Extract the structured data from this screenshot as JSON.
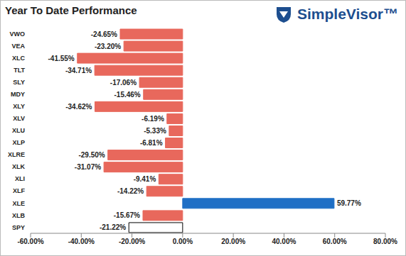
{
  "chart_data": {
    "type": "bar",
    "title": "Year To Date Performance",
    "brand": "SimpleVisor™",
    "orientation": "horizontal",
    "categories": [
      "VWO",
      "VEA",
      "XLC",
      "TLT",
      "SLY",
      "MDY",
      "XLY",
      "XLV",
      "XLU",
      "XLP",
      "XLRE",
      "XLK",
      "XLI",
      "XLF",
      "XLE",
      "XLB",
      "SPY"
    ],
    "values": [
      -24.65,
      -23.2,
      -41.55,
      -34.71,
      -17.06,
      -15.46,
      -34.62,
      -6.19,
      -5.33,
      -6.81,
      -29.5,
      -31.07,
      -9.41,
      -14.22,
      59.77,
      -15.67,
      -21.22
    ],
    "value_labels": [
      "-24.65%",
      "-23.20%",
      "-41.55%",
      "-34.71%",
      "-17.06%",
      "-15.46%",
      "-34.62%",
      "-6.19%",
      "-5.33%",
      "-6.81%",
      "-29.50%",
      "-31.07%",
      "-9.41%",
      "-14.22%",
      "59.77%",
      "-15.67%",
      "-21.22%"
    ],
    "colors": [
      "#e8685c",
      "#e8685c",
      "#e8685c",
      "#e8685c",
      "#e8685c",
      "#e8685c",
      "#e8685c",
      "#e8685c",
      "#e8685c",
      "#e8685c",
      "#e8685c",
      "#e8685c",
      "#e8685c",
      "#e8685c",
      "#1f6fc5",
      "#e8685c",
      "#ffffff"
    ],
    "data_labels": true,
    "grid": false,
    "xlim": [
      -60,
      80
    ],
    "xticks": [
      {
        "value": -60,
        "label": "-60.00%"
      },
      {
        "value": -40,
        "label": "-40.00%"
      },
      {
        "value": -20,
        "label": "-20.00%"
      },
      {
        "value": 0,
        "label": "0.00%"
      },
      {
        "value": 20,
        "label": "20.00%"
      },
      {
        "value": 40,
        "label": "40.00%"
      },
      {
        "value": 60,
        "label": "60.00%"
      },
      {
        "value": 80,
        "label": "80.00%"
      }
    ]
  }
}
